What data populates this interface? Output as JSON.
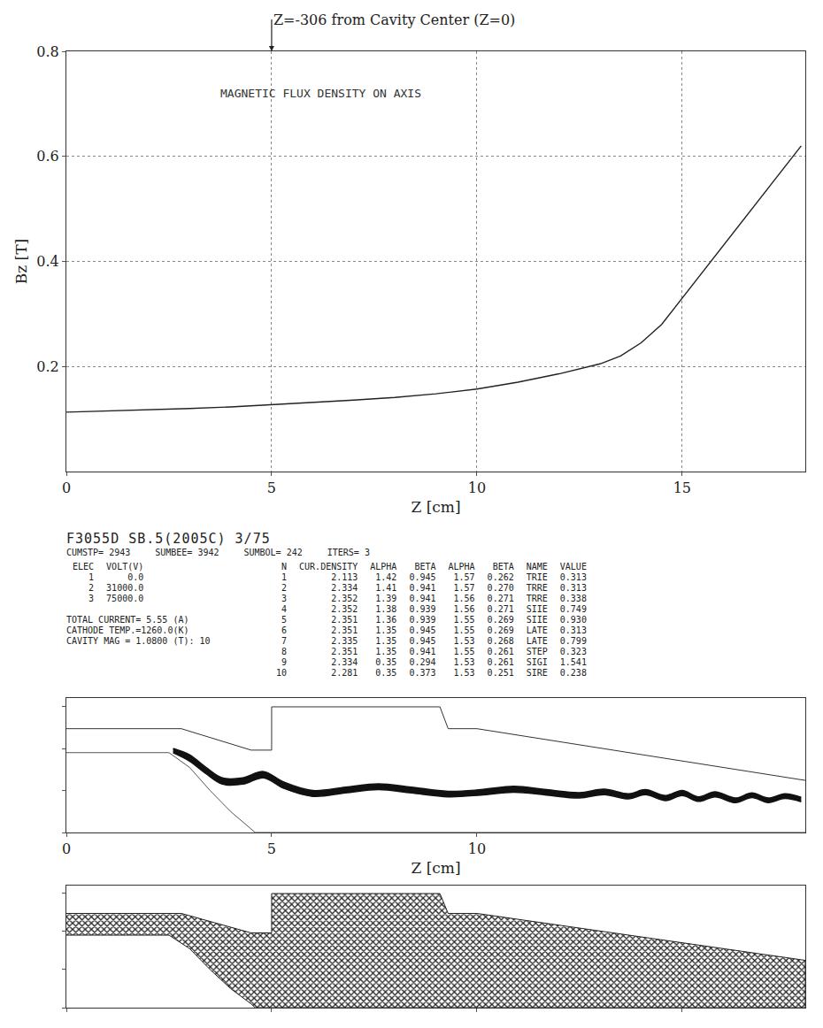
{
  "chart_data": [
    {
      "type": "line",
      "x_label": "Z [cm]",
      "y_label": "Bz [T]",
      "annotations": [
        {
          "text": "MAGNETIC FLUX DENSITY ON AXIS",
          "x": 3.7,
          "y": 0.72
        }
      ],
      "callout": {
        "text": "Z=-306 from Cavity Center (Z=0)",
        "x": 5,
        "y": 0.8
      },
      "x": [
        0,
        1,
        2,
        3,
        4,
        5,
        6,
        7,
        8,
        9,
        10,
        11,
        12,
        13,
        13.5,
        14,
        14.5,
        15,
        15.5,
        16,
        16.5,
        17,
        17.5,
        17.9
      ],
      "values": [
        0.113,
        0.115,
        0.117,
        0.12,
        0.123,
        0.127,
        0.131,
        0.136,
        0.141,
        0.148,
        0.157,
        0.17,
        0.186,
        0.205,
        0.22,
        0.245,
        0.28,
        0.33,
        0.38,
        0.43,
        0.48,
        0.53,
        0.58,
        0.62
      ],
      "color": "#222222",
      "xlim": [
        0,
        18
      ],
      "xticks": [
        0,
        5,
        10,
        15
      ],
      "ylim": [
        0,
        0.8
      ],
      "yticks": [
        0.2,
        0.4,
        0.6,
        0.8
      ],
      "grid": true
    },
    {
      "type": "line",
      "x_label": "Z [cm]",
      "x": [
        2.6,
        3.0,
        3.4,
        3.8,
        4.3,
        4.8,
        5.3,
        6.0,
        6.8,
        7.6,
        8.4,
        9.3,
        10.1,
        10.9,
        11.7,
        12.5,
        13.1,
        13.7,
        14.1,
        14.6,
        15.0,
        15.4,
        15.8,
        16.3,
        16.7,
        17.1,
        17.5,
        17.9
      ],
      "series": [
        {
          "color": "#111111",
          "values": [
            2.0,
            1.85,
            1.55,
            1.3,
            1.3,
            1.45,
            1.2,
            1.0,
            1.08,
            1.16,
            1.08,
            0.98,
            1.02,
            1.1,
            1.02,
            0.95,
            1.03,
            0.92,
            1.02,
            0.88,
            1.0,
            0.85,
            0.97,
            0.82,
            0.94,
            0.82,
            0.92,
            0.84
          ]
        },
        {
          "color": "#111111",
          "values": [
            1.9,
            1.7,
            1.4,
            1.15,
            1.15,
            1.3,
            1.05,
            0.86,
            0.94,
            1.02,
            0.94,
            0.85,
            0.89,
            0.96,
            0.89,
            0.82,
            0.9,
            0.8,
            0.9,
            0.76,
            0.88,
            0.74,
            0.85,
            0.71,
            0.83,
            0.71,
            0.81,
            0.73
          ]
        }
      ],
      "xlim": [
        0,
        18
      ],
      "xticks": [
        0,
        5,
        10
      ],
      "ylim": [
        0,
        3.2
      ],
      "yticks": [
        0,
        1,
        2,
        3
      ],
      "tick_labels": "x",
      "grid": false
    },
    {
      "type": "area",
      "color": "#222222",
      "xlim": [
        0,
        18
      ],
      "xticks": [
        0,
        5,
        10,
        15
      ],
      "ylim": [
        0,
        3.2
      ],
      "yticks": [
        0,
        1,
        2,
        3
      ],
      "tick_labels": false,
      "grid": false
    }
  ],
  "geometry": {
    "wall": {
      "z": [
        0,
        2.8,
        4.5,
        5.0,
        5.0,
        9.1,
        9.3,
        10.0,
        18
      ],
      "r": [
        2.47,
        2.47,
        1.96,
        1.96,
        2.99,
        2.99,
        2.47,
        2.47,
        1.24
      ]
    },
    "cathode": {
      "z": [
        0,
        2.5,
        3.0,
        3.5,
        4.0,
        4.5,
        4.6,
        18
      ],
      "r": [
        1.9,
        1.9,
        1.55,
        1.0,
        0.5,
        0.1,
        0,
        0
      ]
    }
  },
  "printout": {
    "header": "F3055D SB.5(2005C) 3/75",
    "counters": [
      "CUMSTP= 2943",
      "SUMBEE= 3942",
      "SUMBOL= 242",
      "ITERS= 3"
    ],
    "electrodes": {
      "columns": [
        "ELEC",
        "VOLT(V)"
      ],
      "rows": [
        [
          "1",
          "0.0"
        ],
        [
          "2",
          "31000.0"
        ],
        [
          "3",
          "75000.0"
        ]
      ]
    },
    "notes": [
      "TOTAL CURRENT= 5.55 (A)",
      "CATHODE TEMP.=1260.0(K)",
      "CAVITY MAG = 1.0800 (T): 10"
    ],
    "table": {
      "columns": [
        "N",
        "CUR.DENSITY",
        "ALPHA",
        "BETA",
        "ALPHA",
        "BETA",
        "NAME",
        "VALUE"
      ],
      "rows": [
        [
          "1",
          "2.113",
          "1.42",
          "0.945",
          "1.57",
          "0.262",
          "TRIE",
          "0.313"
        ],
        [
          "2",
          "2.334",
          "1.41",
          "0.941",
          "1.57",
          "0.270",
          "TRRE",
          "0.313"
        ],
        [
          "3",
          "2.352",
          "1.39",
          "0.941",
          "1.56",
          "0.271",
          "TRRE",
          "0.338"
        ],
        [
          "4",
          "2.352",
          "1.38",
          "0.939",
          "1.56",
          "0.271",
          "SIIE",
          "0.749"
        ],
        [
          "5",
          "2.351",
          "1.36",
          "0.939",
          "1.55",
          "0.269",
          "SIIE",
          "0.930"
        ],
        [
          "6",
          "2.351",
          "1.35",
          "0.945",
          "1.55",
          "0.269",
          "LATE",
          "0.313"
        ],
        [
          "7",
          "2.335",
          "1.35",
          "0.945",
          "1.53",
          "0.268",
          "LATE",
          "0.799"
        ],
        [
          "8",
          "2.351",
          "1.35",
          "0.941",
          "1.55",
          "0.261",
          "STEP",
          "0.323"
        ],
        [
          "9",
          "2.334",
          "0.35",
          "0.294",
          "1.53",
          "0.261",
          "SIGI",
          "1.541"
        ],
        [
          "10",
          "2.281",
          "0.35",
          "0.373",
          "1.53",
          "0.251",
          "SIRE",
          "0.238"
        ]
      ]
    }
  }
}
